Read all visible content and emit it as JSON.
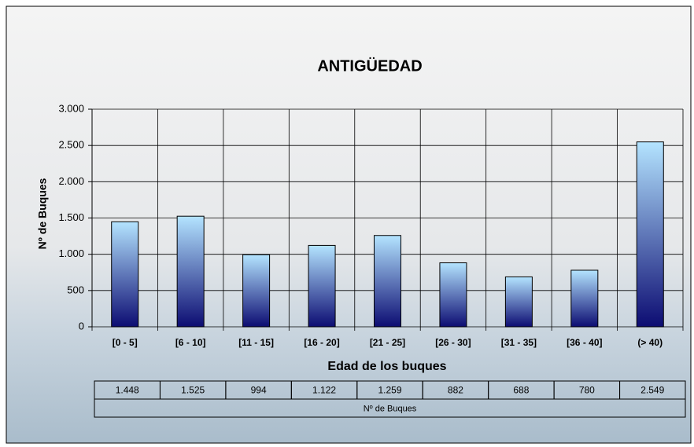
{
  "chart_data": {
    "type": "bar",
    "title": "ANTIGÜEDAD",
    "x_label": "Edad de los buques",
    "y_label": "Nº de Buques",
    "categories": [
      "[0 - 5]",
      "[6 - 10]",
      "[11 - 15]",
      "[16 - 20]",
      "[21 - 25]",
      "[26 - 30]",
      "[31 - 35]",
      "[36 - 40]",
      "(> 40)"
    ],
    "series": [
      {
        "name": "Nº de Buques",
        "gradient": [
          "#b4e4ff",
          "#0c0c72"
        ],
        "values": [
          1448,
          1525,
          994,
          1122,
          1259,
          882,
          688,
          780,
          2549
        ],
        "value_labels": [
          "1.448",
          "1.525",
          "994",
          "1.122",
          "1.259",
          "882",
          "688",
          "780",
          "2.549"
        ]
      }
    ],
    "ylim": [
      0,
      3000
    ],
    "yticks": [
      0,
      500,
      {
        "value": 1000,
        "label": "1.000"
      },
      {
        "value": 1500,
        "label": "1.500"
      },
      {
        "value": 2000,
        "label": "2.000"
      },
      {
        "value": 2500,
        "label": "2.500"
      },
      {
        "value": 3000,
        "label": "3.000"
      }
    ],
    "grid": true
  }
}
